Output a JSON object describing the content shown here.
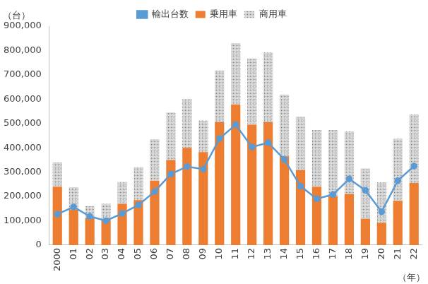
{
  "chart_data": {
    "type": "bar",
    "stacked": true,
    "legend": "top",
    "grid": false,
    "y_label": "（台）",
    "x_label": "（年）",
    "categories": [
      "2000",
      "01",
      "02",
      "03",
      "04",
      "05",
      "06",
      "07",
      "08",
      "09",
      "10",
      "11",
      "12",
      "13",
      "14",
      "15",
      "16",
      "17",
      "18",
      "19",
      "20",
      "21",
      "22"
    ],
    "series": [
      {
        "name": "乗用車",
        "type": "bar",
        "color": "#ed7d31",
        "values": [
          240000,
          145000,
          110000,
          105000,
          170000,
          185000,
          265000,
          350000,
          400000,
          382000,
          505000,
          578000,
          495000,
          505000,
          365000,
          308000,
          240000,
          200000,
          210000,
          108000,
          92000,
          182000,
          255000
        ]
      },
      {
        "name": "商用車",
        "type": "bar",
        "color": "#a6a6a6",
        "values": [
          100000,
          93000,
          50000,
          65000,
          90000,
          135000,
          170000,
          195000,
          200000,
          130000,
          212000,
          252000,
          272000,
          287000,
          253000,
          220000,
          233000,
          273000,
          257000,
          207000,
          166000,
          255000,
          282000
        ]
      },
      {
        "name": "輸出台数",
        "type": "line",
        "color": "#5b9bd5",
        "marker": "circle",
        "values": [
          127000,
          157000,
          118000,
          100000,
          130000,
          165000,
          220000,
          292000,
          323000,
          312000,
          438000,
          495000,
          403000,
          421000,
          352000,
          242000,
          190000,
          208000,
          272000,
          225000,
          137000,
          265000,
          325000
        ]
      }
    ],
    "ylim": [
      0,
      900000
    ],
    "yticks": [
      {
        "value": 0,
        "label": "0"
      },
      {
        "value": 100000,
        "label": "100,000"
      },
      {
        "value": 200000,
        "label": "200,000"
      },
      {
        "value": 300000,
        "label": "300,000"
      },
      {
        "value": 400000,
        "label": "400,000"
      },
      {
        "value": 500000,
        "label": "500,000"
      },
      {
        "value": 600000,
        "label": "600,000"
      },
      {
        "value": 700000,
        "label": "700,000"
      },
      {
        "value": 800000,
        "label": "800,000"
      },
      {
        "value": 900000,
        "label": "900,000"
      }
    ]
  }
}
